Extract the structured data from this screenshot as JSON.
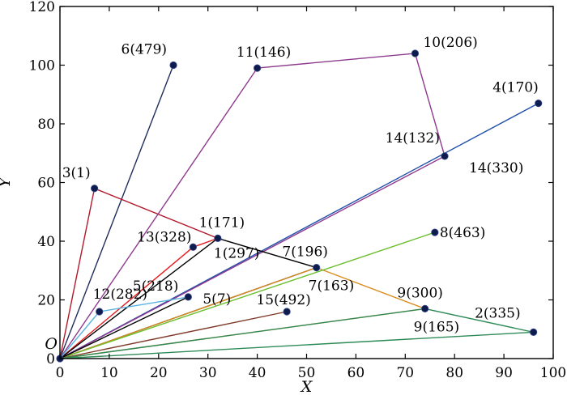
{
  "chart_data": {
    "type": "line",
    "xlabel": "X",
    "ylabel": "Y",
    "origin_label": "O",
    "xlim": [
      0,
      100
    ],
    "ylim": [
      0,
      120
    ],
    "xticks": [
      0,
      10,
      20,
      30,
      40,
      50,
      60,
      70,
      80,
      90,
      100
    ],
    "yticks": [
      0,
      20,
      40,
      60,
      80,
      100,
      120
    ],
    "grid": false,
    "routes": [
      {
        "color": "#1f2d5c",
        "path": [
          [
            0,
            0
          ],
          [
            23,
            100
          ]
        ]
      },
      {
        "color": "#b2182b",
        "path": [
          [
            0,
            0
          ],
          [
            7,
            58
          ],
          [
            32,
            41
          ]
        ]
      },
      {
        "color": "#1f4faa",
        "path": [
          [
            0,
            0
          ],
          [
            97,
            87
          ]
        ]
      },
      {
        "color": "#8e3a8e",
        "path": [
          [
            0,
            0
          ],
          [
            78,
            69
          ]
        ]
      },
      {
        "color": "#8e3a8e",
        "path": [
          [
            0,
            0
          ],
          [
            40,
            99
          ],
          [
            72,
            104
          ],
          [
            78,
            69
          ]
        ]
      },
      {
        "color": "#e41a1c",
        "path": [
          [
            0,
            0
          ],
          [
            27,
            38
          ],
          [
            32,
            41
          ]
        ]
      },
      {
        "color": "#000000",
        "path": [
          [
            0,
            0
          ],
          [
            32,
            41
          ],
          [
            52,
            31
          ],
          [
            0,
            0
          ]
        ]
      },
      {
        "color": "#d98b1c",
        "path": [
          [
            0,
            0
          ],
          [
            52,
            31
          ],
          [
            74,
            17
          ]
        ]
      },
      {
        "color": "#6bbf2f",
        "path": [
          [
            0,
            0
          ],
          [
            76,
            43
          ]
        ]
      },
      {
        "color": "#5ab4e0",
        "path": [
          [
            0,
            0
          ],
          [
            8,
            16
          ],
          [
            26,
            21
          ]
        ]
      },
      {
        "color": "#000000",
        "path": [
          [
            0,
            0
          ],
          [
            26,
            21
          ]
        ]
      },
      {
        "color": "#7f3b2a",
        "path": [
          [
            0,
            0
          ],
          [
            46,
            16
          ]
        ]
      },
      {
        "color": "#d98b1c",
        "path": [
          [
            0,
            0
          ],
          [
            74,
            17
          ]
        ]
      },
      {
        "color": "#2e8b57",
        "path": [
          [
            0,
            0
          ],
          [
            74,
            17
          ],
          [
            96,
            9
          ]
        ]
      },
      {
        "color": "#2e8b57",
        "path": [
          [
            0,
            0
          ],
          [
            96,
            9
          ]
        ]
      }
    ],
    "points": [
      {
        "label": "6(479)",
        "x": 23,
        "y": 100,
        "color": "#1f2d5c",
        "anchor": "end"
      },
      {
        "label": "11(146)",
        "x": 40,
        "y": 99,
        "color": "#8e3a8e",
        "anchor": "middle"
      },
      {
        "label": "10(206)",
        "x": 72,
        "y": 104,
        "color": "#8e3a8e",
        "anchor": "start"
      },
      {
        "label": "4(170)",
        "x": 97,
        "y": 87,
        "color": "#1f4faa",
        "anchor": "end"
      },
      {
        "label": "14(132)",
        "x": 78,
        "y": 69,
        "color": "#8e3a8e",
        "anchor": "end"
      },
      {
        "label": "14(330)",
        "x": 78,
        "y": 69,
        "color": "#1f4faa",
        "anchor": "start"
      },
      {
        "label": "3(1)",
        "x": 7,
        "y": 58,
        "color": "#b2182b",
        "anchor": "end"
      },
      {
        "label": "1(171)",
        "x": 32,
        "y": 41,
        "color": "#000000",
        "anchor": "middle"
      },
      {
        "label": "13(328)",
        "x": 27,
        "y": 38,
        "color": "#e41a1c",
        "anchor": "end"
      },
      {
        "label": "1(297)",
        "x": 32,
        "y": 41,
        "color": "#000000",
        "anchor": "start"
      },
      {
        "label": "7(196)",
        "x": 52,
        "y": 31,
        "color": "#000000",
        "anchor": "middle"
      },
      {
        "label": "7(163)",
        "x": 52,
        "y": 31,
        "color": "#d98b1c",
        "anchor": "start"
      },
      {
        "label": "8(463)",
        "x": 76,
        "y": 43,
        "color": "#6bbf2f",
        "anchor": "start"
      },
      {
        "label": "12(282)",
        "x": 8,
        "y": 16,
        "color": "#5ab4e0",
        "anchor": "start"
      },
      {
        "label": "5(218)",
        "x": 26,
        "y": 21,
        "color": "#5ab4e0",
        "anchor": "end"
      },
      {
        "label": "5(7)",
        "x": 26,
        "y": 21,
        "color": "#000000",
        "anchor": "start"
      },
      {
        "label": "15(492)",
        "x": 46,
        "y": 16,
        "color": "#7f3b2a",
        "anchor": "middle"
      },
      {
        "label": "9(300)",
        "x": 74,
        "y": 17,
        "color": "#d98b1c",
        "anchor": "middle"
      },
      {
        "label": "9(165)",
        "x": 74,
        "y": 17,
        "color": "#2e8b57",
        "anchor": "start"
      },
      {
        "label": "2(335)",
        "x": 96,
        "y": 9,
        "color": "#2e8b57",
        "anchor": "end"
      }
    ]
  }
}
